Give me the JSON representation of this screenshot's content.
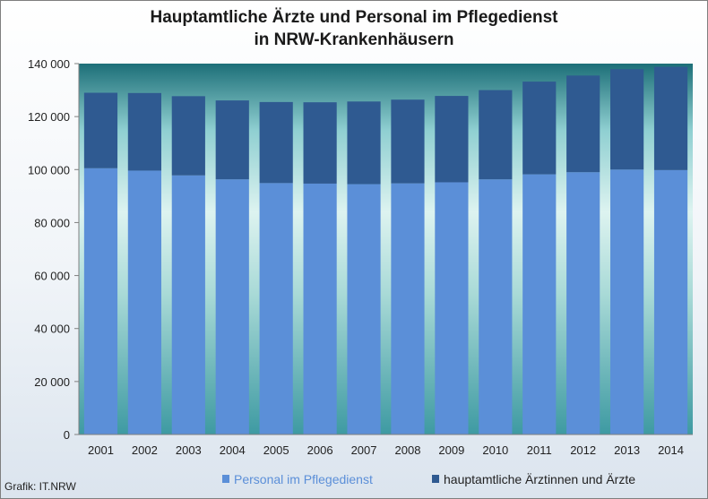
{
  "chart_data": {
    "type": "bar",
    "stacked": true,
    "title_lines": [
      "Hauptamtliche Ärzte und Personal im Pflegedienst",
      "in NRW-Krankenhäusern"
    ],
    "categories": [
      "2001",
      "2002",
      "2003",
      "2004",
      "2005",
      "2006",
      "2007",
      "2008",
      "2009",
      "2010",
      "2011",
      "2012",
      "2013",
      "2014"
    ],
    "series": [
      {
        "name": "Personal im Pflegedienst",
        "color": "#5b8fd8",
        "values": [
          100500,
          99600,
          97800,
          96300,
          94900,
          94700,
          94500,
          94800,
          95200,
          96300,
          98200,
          99000,
          100000,
          99800
        ]
      },
      {
        "name": "hauptamtliche Ärztinnen und Ärzte",
        "color": "#2f5a91",
        "values": [
          28500,
          29300,
          29900,
          29800,
          30600,
          30700,
          31200,
          31600,
          32600,
          33700,
          35000,
          36500,
          37900,
          39000
        ]
      }
    ],
    "ylim": [
      0,
      140000
    ],
    "yticks": [
      0,
      20000,
      40000,
      60000,
      80000,
      100000,
      120000,
      140000
    ],
    "ytick_labels": [
      "0",
      "20 000",
      "40 000",
      "60 000",
      "80 000",
      "100 000",
      "120 000",
      "140 000"
    ],
    "grid": false,
    "legend_position": "bottom"
  },
  "source": "Grafik: IT.NRW"
}
